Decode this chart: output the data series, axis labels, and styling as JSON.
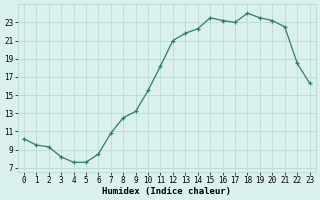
{
  "x": [
    0,
    1,
    2,
    3,
    4,
    5,
    6,
    7,
    8,
    9,
    10,
    11,
    12,
    13,
    14,
    15,
    16,
    17,
    18,
    19,
    20,
    21,
    22,
    23
  ],
  "y": [
    10.2,
    9.5,
    9.3,
    8.2,
    7.6,
    7.6,
    8.5,
    10.8,
    12.5,
    13.2,
    15.5,
    18.2,
    21.0,
    21.8,
    22.3,
    23.5,
    23.2,
    23.0,
    24.0,
    23.5,
    23.2,
    22.5,
    18.5,
    16.3
  ],
  "title": "",
  "xlabel": "Humidex (Indice chaleur)",
  "line_color": "#2e7d6e",
  "marker_color": "#2e7d6e",
  "bg_color": "#d9f0ee",
  "grid_color": "#b8dbd8",
  "ylim": [
    6.5,
    25.0
  ],
  "xlim": [
    -0.5,
    23.5
  ],
  "yticks": [
    7,
    9,
    11,
    13,
    15,
    17,
    19,
    21,
    23
  ],
  "xticks": [
    0,
    1,
    2,
    3,
    4,
    5,
    6,
    7,
    8,
    9,
    10,
    11,
    12,
    13,
    14,
    15,
    16,
    17,
    18,
    19,
    20,
    21,
    22,
    23
  ],
  "xlabel_fontsize": 6.5,
  "tick_fontsize": 5.5
}
